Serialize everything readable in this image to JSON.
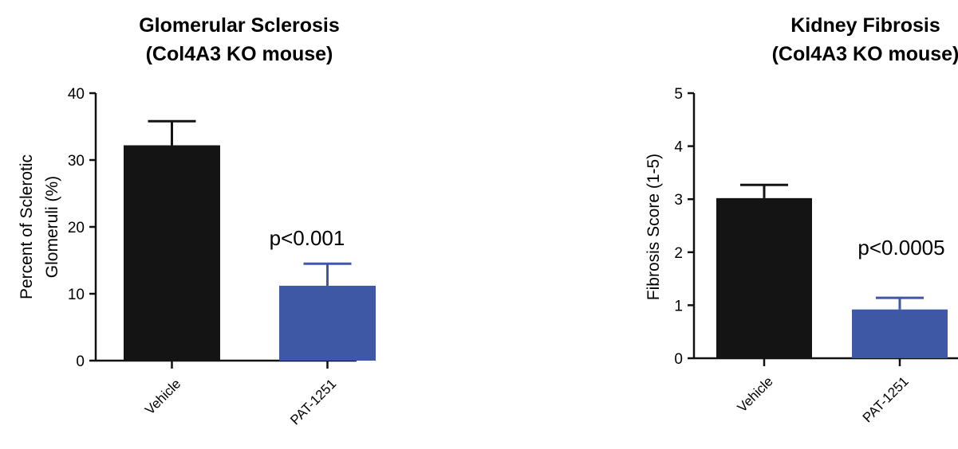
{
  "chart_data": [
    {
      "type": "bar",
      "title": [
        "Glomerular Sclerosis",
        "(Col4A3  KO mouse)"
      ],
      "ylabel": [
        "Percent of Sclerotic",
        "Glomeruli  (%)"
      ],
      "xlabel": "",
      "categories": [
        "Vehicle",
        "PAT-1251"
      ],
      "values": [
        32.2,
        11.2
      ],
      "errors": [
        3.6,
        3.3
      ],
      "colors": [
        "#141414",
        "#3f58a5"
      ],
      "ylim": [
        0,
        40
      ],
      "yticks": [
        0,
        10,
        20,
        30,
        40
      ],
      "annotation": "p<0.001"
    },
    {
      "type": "bar",
      "title": [
        "Kidney Fibrosis",
        "(Col4A3  KO mouse)"
      ],
      "ylabel": [
        "Fibrosis Score (1-5)"
      ],
      "xlabel": "",
      "categories": [
        "Vehicle",
        "PAT-1251"
      ],
      "values": [
        3.02,
        0.92
      ],
      "errors": [
        0.25,
        0.22
      ],
      "colors": [
        "#141414",
        "#3f58a5"
      ],
      "ylim": [
        0,
        5
      ],
      "yticks": [
        0,
        1,
        2,
        3,
        4,
        5
      ],
      "annotation": "p<0.0005"
    }
  ]
}
